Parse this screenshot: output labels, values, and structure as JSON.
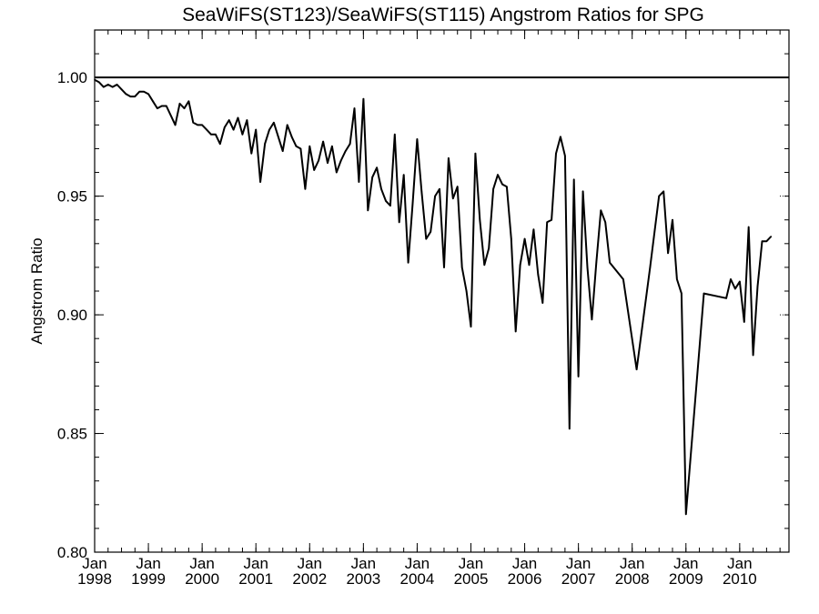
{
  "chart_data": {
    "type": "line",
    "title": "SeaWiFS(ST123)/SeaWiFS(ST115)  Angstrom Ratios for SPG",
    "xlabel": "",
    "ylabel": "Angstrom Ratio",
    "xlim": [
      "1998-01",
      "2010-12"
    ],
    "ylim": [
      0.8,
      1.02
    ],
    "yticks": [
      0.8,
      0.85,
      0.9,
      0.95,
      1.0
    ],
    "ytick_labels": [
      "0.80",
      "0.85",
      "0.90",
      "0.95",
      "1.00"
    ],
    "xtick_labels": [
      {
        "month": "Jan",
        "year": "1998"
      },
      {
        "month": "Jan",
        "year": "1999"
      },
      {
        "month": "Jan",
        "year": "2000"
      },
      {
        "month": "Jan",
        "year": "2001"
      },
      {
        "month": "Jan",
        "year": "2002"
      },
      {
        "month": "Jan",
        "year": "2003"
      },
      {
        "month": "Jan",
        "year": "2004"
      },
      {
        "month": "Jan",
        "year": "2005"
      },
      {
        "month": "Jan",
        "year": "2006"
      },
      {
        "month": "Jan",
        "year": "2007"
      },
      {
        "month": "Jan",
        "year": "2008"
      },
      {
        "month": "Jan",
        "year": "2009"
      },
      {
        "month": "Jan",
        "year": "2010"
      }
    ],
    "reference_line": {
      "y": 1.0
    },
    "grid": false,
    "series": [
      {
        "color": "#000000",
        "points": [
          [
            "1998-01",
            0.999
          ],
          [
            "1998-02",
            0.998
          ],
          [
            "1998-03",
            0.996
          ],
          [
            "1998-04",
            0.997
          ],
          [
            "1998-05",
            0.996
          ],
          [
            "1998-06",
            0.997
          ],
          [
            "1998-07",
            0.995
          ],
          [
            "1998-08",
            0.993
          ],
          [
            "1998-09",
            0.992
          ],
          [
            "1998-10",
            0.992
          ],
          [
            "1998-11",
            0.994
          ],
          [
            "1998-12",
            0.994
          ],
          [
            "1999-01",
            0.993
          ],
          [
            "1999-02",
            0.99
          ],
          [
            "1999-03",
            0.987
          ],
          [
            "1999-04",
            0.988
          ],
          [
            "1999-05",
            0.988
          ],
          [
            "1999-06",
            0.984
          ],
          [
            "1999-07",
            0.98
          ],
          [
            "1999-08",
            0.989
          ],
          [
            "1999-09",
            0.987
          ],
          [
            "1999-10",
            0.99
          ],
          [
            "1999-11",
            0.981
          ],
          [
            "1999-12",
            0.98
          ],
          [
            "2000-01",
            0.98
          ],
          [
            "2000-02",
            0.978
          ],
          [
            "2000-03",
            0.976
          ],
          [
            "2000-04",
            0.976
          ],
          [
            "2000-05",
            0.972
          ],
          [
            "2000-06",
            0.979
          ],
          [
            "2000-07",
            0.982
          ],
          [
            "2000-08",
            0.978
          ],
          [
            "2000-09",
            0.983
          ],
          [
            "2000-10",
            0.976
          ],
          [
            "2000-11",
            0.982
          ],
          [
            "2000-12",
            0.968
          ],
          [
            "2001-01",
            0.978
          ],
          [
            "2001-02",
            0.956
          ],
          [
            "2001-03",
            0.972
          ],
          [
            "2001-04",
            0.978
          ],
          [
            "2001-05",
            0.981
          ],
          [
            "2001-06",
            0.975
          ],
          [
            "2001-07",
            0.969
          ],
          [
            "2001-08",
            0.98
          ],
          [
            "2001-09",
            0.975
          ],
          [
            "2001-10",
            0.971
          ],
          [
            "2001-11",
            0.97
          ],
          [
            "2001-12",
            0.953
          ],
          [
            "2002-01",
            0.971
          ],
          [
            "2002-02",
            0.961
          ],
          [
            "2002-03",
            0.965
          ],
          [
            "2002-04",
            0.973
          ],
          [
            "2002-05",
            0.964
          ],
          [
            "2002-06",
            0.971
          ],
          [
            "2002-07",
            0.96
          ],
          [
            "2002-08",
            0.965
          ],
          [
            "2002-09",
            0.969
          ],
          [
            "2002-10",
            0.972
          ],
          [
            "2002-11",
            0.987
          ],
          [
            "2002-12",
            0.956
          ],
          [
            "2003-01",
            0.991
          ],
          [
            "2003-02",
            0.944
          ],
          [
            "2003-03",
            0.958
          ],
          [
            "2003-04",
            0.962
          ],
          [
            "2003-05",
            0.953
          ],
          [
            "2003-06",
            0.948
          ],
          [
            "2003-07",
            0.946
          ],
          [
            "2003-08",
            0.976
          ],
          [
            "2003-09",
            0.939
          ],
          [
            "2003-10",
            0.959
          ],
          [
            "2003-11",
            0.922
          ],
          [
            "2003-12",
            0.947
          ],
          [
            "2004-01",
            0.974
          ],
          [
            "2004-02",
            0.952
          ],
          [
            "2004-03",
            0.932
          ],
          [
            "2004-04",
            0.935
          ],
          [
            "2004-05",
            0.95
          ],
          [
            "2004-06",
            0.953
          ],
          [
            "2004-07",
            0.92
          ],
          [
            "2004-08",
            0.966
          ],
          [
            "2004-09",
            0.949
          ],
          [
            "2004-10",
            0.954
          ],
          [
            "2004-11",
            0.92
          ],
          [
            "2004-12",
            0.91
          ],
          [
            "2005-01",
            0.895
          ],
          [
            "2005-02",
            0.968
          ],
          [
            "2005-03",
            0.94
          ],
          [
            "2005-04",
            0.921
          ],
          [
            "2005-05",
            0.928
          ],
          [
            "2005-06",
            0.953
          ],
          [
            "2005-07",
            0.959
          ],
          [
            "2005-08",
            0.955
          ],
          [
            "2005-09",
            0.954
          ],
          [
            "2005-10",
            0.932
          ],
          [
            "2005-11",
            0.893
          ],
          [
            "2005-12",
            0.921
          ],
          [
            "2006-01",
            0.932
          ],
          [
            "2006-02",
            0.921
          ],
          [
            "2006-03",
            0.936
          ],
          [
            "2006-04",
            0.917
          ],
          [
            "2006-05",
            0.905
          ],
          [
            "2006-06",
            0.939
          ],
          [
            "2006-07",
            0.94
          ],
          [
            "2006-08",
            0.968
          ],
          [
            "2006-09",
            0.975
          ],
          [
            "2006-10",
            0.967
          ],
          [
            "2006-11",
            0.852
          ],
          [
            "2006-12",
            0.957
          ],
          [
            "2007-01",
            0.874
          ],
          [
            "2007-02",
            0.952
          ],
          [
            "2007-03",
            0.92
          ],
          [
            "2007-04",
            0.898
          ],
          [
            "2007-05",
            0.922
          ],
          [
            "2007-06",
            0.944
          ],
          [
            "2007-07",
            0.939
          ],
          [
            "2007-08",
            0.922
          ],
          [
            "2007-11",
            0.915
          ],
          [
            "2008-02",
            0.877
          ],
          [
            "2008-05",
            0.92
          ],
          [
            "2008-07",
            0.95
          ],
          [
            "2008-08",
            0.952
          ],
          [
            "2008-09",
            0.926
          ],
          [
            "2008-10",
            0.94
          ],
          [
            "2008-11",
            0.915
          ],
          [
            "2008-12",
            0.909
          ],
          [
            "2009-01",
            0.816
          ],
          [
            "2009-05",
            0.909
          ],
          [
            "2009-10",
            0.907
          ],
          [
            "2009-11",
            0.915
          ],
          [
            "2009-12",
            0.911
          ],
          [
            "2010-01",
            0.914
          ],
          [
            "2010-02",
            0.897
          ],
          [
            "2010-03",
            0.937
          ],
          [
            "2010-04",
            0.883
          ],
          [
            "2010-05",
            0.912
          ],
          [
            "2010-06",
            0.931
          ],
          [
            "2010-07",
            0.931
          ],
          [
            "2010-08",
            0.933
          ]
        ]
      }
    ]
  }
}
